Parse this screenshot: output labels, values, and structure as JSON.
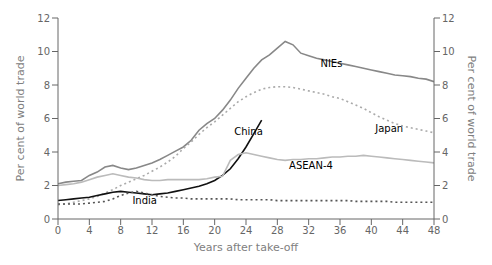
{
  "chart_data": {
    "type": "line",
    "xlabel": "Years after take-off",
    "ylabel": "Per cent of world trade",
    "y2label": "Per cent of world trade",
    "x": [
      0,
      1,
      2,
      3,
      4,
      5,
      6,
      7,
      8,
      9,
      10,
      11,
      12,
      13,
      14,
      15,
      16,
      17,
      18,
      19,
      20,
      21,
      22,
      23,
      24,
      25,
      26,
      27,
      28,
      29,
      30,
      31,
      32,
      33,
      34,
      35,
      36,
      37,
      38,
      39,
      40,
      41,
      42,
      43,
      44,
      45,
      46,
      47,
      48
    ],
    "xlim": [
      0,
      48
    ],
    "xticks": [
      0,
      4,
      8,
      12,
      16,
      20,
      24,
      28,
      32,
      36,
      40,
      44,
      48
    ],
    "ylim": [
      0,
      12
    ],
    "yticks": [
      0,
      2,
      4,
      6,
      8,
      10,
      12
    ],
    "y2lim": [
      0,
      12
    ],
    "y2ticks": [
      0,
      2,
      4,
      6,
      8,
      10,
      12
    ],
    "grid": false,
    "series": [
      {
        "name": "NIEs",
        "color": "#888888",
        "line_style": "solid",
        "values": [
          2.1,
          2.2,
          2.25,
          2.3,
          2.6,
          2.8,
          3.1,
          3.2,
          3.05,
          2.95,
          3.05,
          3.2,
          3.35,
          3.55,
          3.8,
          4.05,
          4.3,
          4.7,
          5.3,
          5.7,
          6.0,
          6.5,
          7.1,
          7.8,
          8.4,
          9.0,
          9.5,
          9.8,
          10.2,
          10.6,
          10.4,
          9.9,
          9.75,
          9.6,
          9.5,
          9.4,
          9.3,
          9.2,
          9.1,
          9.0,
          8.9,
          8.8,
          8.7,
          8.6,
          8.55,
          8.5,
          8.4,
          8.35,
          8.2
        ]
      },
      {
        "name": "Japan",
        "color": "#aaaaaa",
        "line_style": "dotted",
        "values": [
          0.85,
          0.9,
          1.0,
          1.1,
          1.2,
          1.35,
          1.55,
          1.75,
          2.0,
          2.2,
          2.4,
          2.6,
          2.85,
          3.1,
          3.4,
          3.75,
          4.2,
          4.6,
          5.05,
          5.45,
          5.8,
          6.2,
          6.6,
          7.0,
          7.3,
          7.55,
          7.75,
          7.85,
          7.9,
          7.9,
          7.85,
          7.75,
          7.65,
          7.55,
          7.45,
          7.3,
          7.2,
          7.0,
          6.8,
          6.6,
          6.35,
          6.1,
          5.9,
          5.7,
          5.55,
          5.45,
          5.35,
          5.25,
          5.15
        ]
      },
      {
        "name": "China",
        "color": "#111111",
        "line_style": "solid",
        "values": [
          1.1,
          1.15,
          1.2,
          1.25,
          1.3,
          1.4,
          1.5,
          1.6,
          1.65,
          1.6,
          1.55,
          1.5,
          1.45,
          1.5,
          1.55,
          1.65,
          1.75,
          1.85,
          1.95,
          2.1,
          2.3,
          2.6,
          3.0,
          3.6,
          4.3,
          5.1,
          5.9,
          null,
          null,
          null,
          null,
          null,
          null,
          null,
          null,
          null,
          null,
          null,
          null,
          null,
          null,
          null,
          null,
          null,
          null,
          null,
          null,
          null,
          null
        ]
      },
      {
        "name": "ASEAN-4",
        "color": "#bbbbbb",
        "line_style": "solid",
        "values": [
          2.0,
          2.05,
          2.1,
          2.2,
          2.35,
          2.5,
          2.6,
          2.7,
          2.6,
          2.5,
          2.45,
          2.35,
          2.3,
          2.3,
          2.35,
          2.35,
          2.35,
          2.35,
          2.35,
          2.4,
          2.5,
          2.55,
          3.5,
          3.85,
          3.95,
          3.85,
          3.75,
          3.65,
          3.55,
          3.5,
          3.55,
          3.55,
          3.6,
          3.6,
          3.65,
          3.7,
          3.7,
          3.75,
          3.75,
          3.8,
          3.75,
          3.7,
          3.65,
          3.6,
          3.55,
          3.5,
          3.45,
          3.4,
          3.35
        ]
      },
      {
        "name": "India",
        "color": "#555555",
        "line_style": "dotted",
        "values": [
          0.9,
          0.9,
          0.9,
          0.9,
          0.95,
          1.0,
          1.05,
          1.2,
          1.4,
          1.55,
          1.65,
          1.55,
          1.45,
          1.35,
          1.3,
          1.25,
          1.25,
          1.2,
          1.2,
          1.2,
          1.2,
          1.2,
          1.2,
          1.15,
          1.15,
          1.15,
          1.15,
          1.15,
          1.1,
          1.1,
          1.1,
          1.1,
          1.1,
          1.1,
          1.1,
          1.1,
          1.1,
          1.1,
          1.05,
          1.05,
          1.05,
          1.05,
          1.05,
          1.0,
          1.0,
          1.0,
          1.0,
          1.0,
          1.0
        ]
      }
    ],
    "annotations": [
      {
        "x": 33.5,
        "y": 9.3,
        "text": "NIEs"
      },
      {
        "x": 40.5,
        "y": 5.4,
        "text": "Japan"
      },
      {
        "x": 22.5,
        "y": 5.2,
        "text": "China"
      },
      {
        "x": 29.5,
        "y": 3.2,
        "text": "ASEAN-4"
      },
      {
        "x": 9.5,
        "y": 1.1,
        "text": "India"
      }
    ]
  }
}
